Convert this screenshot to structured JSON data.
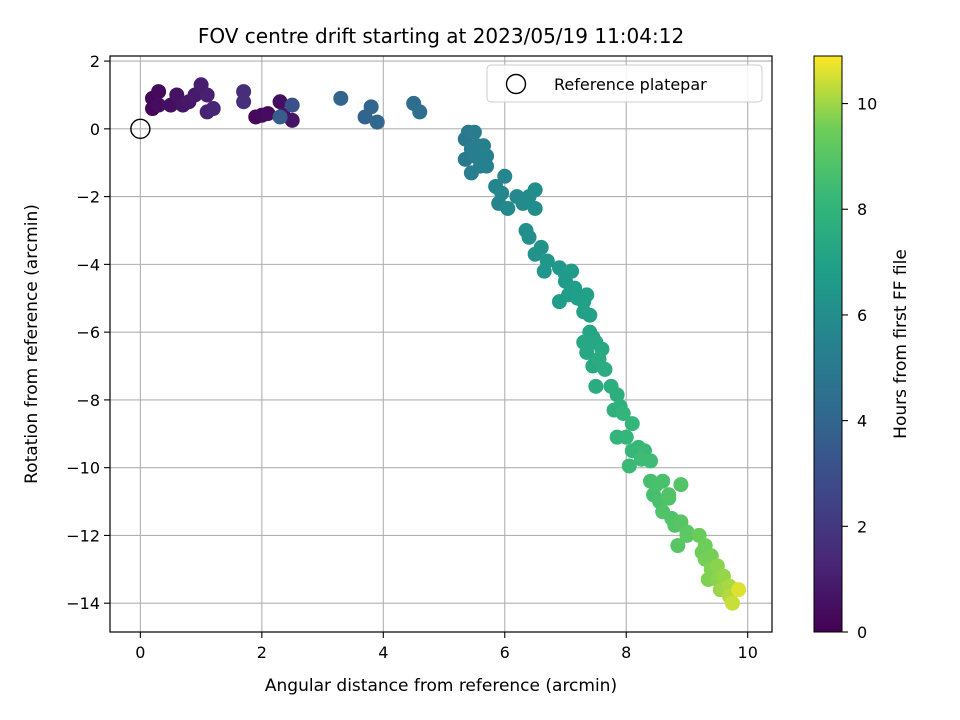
{
  "chart_data": {
    "type": "scatter",
    "title": "FOV centre drift starting at 2023/05/19 11:04:12",
    "xlabel": "Angular distance from reference (arcmin)",
    "ylabel": "Rotation from reference (arcmin)",
    "xlim": [
      -0.5,
      10.4
    ],
    "ylim": [
      -14.85,
      2.15
    ],
    "xticks": [
      0,
      2,
      4,
      6,
      8,
      10
    ],
    "xtick_labels": [
      "0",
      "2",
      "4",
      "6",
      "8",
      "10"
    ],
    "yticks": [
      2,
      0,
      -2,
      -4,
      -6,
      -8,
      -10,
      -12,
      -14
    ],
    "ytick_labels": [
      "2",
      "0",
      "−2",
      "−4",
      "−6",
      "−8",
      "−10",
      "−12",
      "−14"
    ],
    "grid": true,
    "legend": {
      "placement": "top-right",
      "entries": [
        "Reference platepar"
      ]
    },
    "reference_point": {
      "x": 0,
      "y": 0
    },
    "colorbar": {
      "label": "Hours from first FF file",
      "colormap": "viridis",
      "range": [
        0,
        10.9
      ],
      "ticks": [
        0,
        2,
        4,
        6,
        8,
        10
      ],
      "tick_labels": [
        "0",
        "2",
        "4",
        "6",
        "8",
        "10"
      ]
    },
    "points": [
      [
        0.2,
        0.6,
        0.1
      ],
      [
        0.2,
        0.9,
        0.2
      ],
      [
        0.3,
        1.1,
        0.3
      ],
      [
        0.3,
        0.7,
        0.4
      ],
      [
        0.5,
        0.7,
        0.5
      ],
      [
        0.6,
        1.0,
        0.6
      ],
      [
        0.7,
        0.7,
        0.7
      ],
      [
        0.8,
        0.8,
        0.8
      ],
      [
        0.9,
        1.0,
        0.9
      ],
      [
        1.0,
        1.3,
        1.0
      ],
      [
        1.1,
        1.0,
        1.1
      ],
      [
        1.1,
        0.5,
        1.2
      ],
      [
        1.2,
        0.6,
        1.3
      ],
      [
        1.7,
        1.1,
        1.6
      ],
      [
        1.7,
        0.8,
        1.7
      ],
      [
        1.9,
        0.35,
        0.2
      ],
      [
        2.0,
        0.4,
        0.3
      ],
      [
        2.1,
        0.45,
        0.4
      ],
      [
        2.3,
        0.8,
        0.5
      ],
      [
        2.35,
        0.4,
        0.6
      ],
      [
        2.5,
        0.25,
        0.7
      ],
      [
        2.3,
        0.35,
        3.6
      ],
      [
        2.5,
        0.7,
        3.0
      ],
      [
        3.3,
        0.9,
        3.9
      ],
      [
        3.7,
        0.35,
        3.9
      ],
      [
        3.8,
        0.65,
        4.0
      ],
      [
        3.9,
        0.2,
        4.1
      ],
      [
        4.5,
        0.75,
        4.3
      ],
      [
        4.6,
        0.5,
        4.4
      ],
      [
        5.35,
        -0.3,
        4.9
      ],
      [
        5.4,
        -0.1,
        5.0
      ],
      [
        5.35,
        -0.9,
        5.0
      ],
      [
        5.45,
        -0.6,
        5.1
      ],
      [
        5.5,
        -0.1,
        5.1
      ],
      [
        5.5,
        -0.8,
        5.2
      ],
      [
        5.55,
        -0.5,
        5.2
      ],
      [
        5.45,
        -1.3,
        5.2
      ],
      [
        5.6,
        -0.75,
        5.3
      ],
      [
        5.6,
        -1.1,
        5.3
      ],
      [
        5.65,
        -0.5,
        5.3
      ],
      [
        5.7,
        -0.8,
        5.4
      ],
      [
        5.7,
        -1.1,
        5.4
      ],
      [
        5.85,
        -1.7,
        5.6
      ],
      [
        5.9,
        -2.2,
        5.6
      ],
      [
        5.95,
        -1.9,
        5.7
      ],
      [
        6.0,
        -1.4,
        5.7
      ],
      [
        6.05,
        -2.35,
        5.8
      ],
      [
        6.2,
        -2.0,
        5.8
      ],
      [
        6.3,
        -2.2,
        5.9
      ],
      [
        6.4,
        -2.0,
        5.9
      ],
      [
        6.5,
        -2.35,
        6.0
      ],
      [
        6.5,
        -1.8,
        6.0
      ],
      [
        6.35,
        -3.0,
        6.1
      ],
      [
        6.4,
        -3.2,
        6.1
      ],
      [
        6.5,
        -3.7,
        6.3
      ],
      [
        6.6,
        -3.5,
        6.3
      ],
      [
        6.7,
        -3.9,
        6.4
      ],
      [
        6.65,
        -4.2,
        6.4
      ],
      [
        6.9,
        -4.1,
        6.5
      ],
      [
        7.0,
        -4.5,
        6.6
      ],
      [
        7.0,
        -4.3,
        6.6
      ],
      [
        7.1,
        -4.2,
        6.7
      ],
      [
        6.9,
        -5.1,
        6.7
      ],
      [
        7.05,
        -4.9,
        6.8
      ],
      [
        7.15,
        -4.7,
        6.8
      ],
      [
        7.2,
        -5.0,
        6.9
      ],
      [
        7.3,
        -5.1,
        6.9
      ],
      [
        7.35,
        -4.9,
        7.0
      ],
      [
        7.3,
        -5.4,
        7.0
      ],
      [
        7.4,
        -5.5,
        7.0
      ],
      [
        7.4,
        -6.0,
        7.2
      ],
      [
        7.45,
        -6.15,
        7.2
      ],
      [
        7.5,
        -6.3,
        7.3
      ],
      [
        7.3,
        -6.3,
        7.3
      ],
      [
        7.35,
        -6.6,
        7.3
      ],
      [
        7.45,
        -7.0,
        7.4
      ],
      [
        7.55,
        -6.8,
        7.4
      ],
      [
        7.6,
        -6.5,
        7.4
      ],
      [
        7.55,
        -6.8,
        7.5
      ],
      [
        7.5,
        -7.6,
        7.5
      ],
      [
        7.65,
        -7.1,
        7.6
      ],
      [
        7.75,
        -7.6,
        7.7
      ],
      [
        7.85,
        -7.85,
        7.7
      ],
      [
        7.8,
        -8.3,
        7.8
      ],
      [
        7.9,
        -8.2,
        7.8
      ],
      [
        7.95,
        -8.4,
        8.0
      ],
      [
        7.85,
        -9.1,
        8.0
      ],
      [
        8.1,
        -8.7,
        8.1
      ],
      [
        8.0,
        -9.1,
        8.1
      ],
      [
        8.1,
        -9.5,
        8.2
      ],
      [
        8.2,
        -9.4,
        8.2
      ],
      [
        8.3,
        -9.5,
        8.3
      ],
      [
        8.05,
        -9.95,
        8.3
      ],
      [
        8.25,
        -9.75,
        8.4
      ],
      [
        8.4,
        -9.8,
        8.4
      ],
      [
        8.4,
        -10.4,
        8.6
      ],
      [
        8.45,
        -10.8,
        8.6
      ],
      [
        8.5,
        -10.5,
        8.7
      ],
      [
        8.6,
        -10.4,
        8.7
      ],
      [
        8.55,
        -11.0,
        8.7
      ],
      [
        8.7,
        -10.9,
        8.8
      ],
      [
        8.6,
        -11.3,
        8.8
      ],
      [
        8.75,
        -11.5,
        8.8
      ],
      [
        8.7,
        -10.8,
        8.9
      ],
      [
        8.9,
        -10.5,
        8.9
      ],
      [
        8.8,
        -11.7,
        8.9
      ],
      [
        8.9,
        -11.6,
        9.0
      ],
      [
        8.85,
        -12.3,
        9.0
      ],
      [
        9.0,
        -12.0,
        9.1
      ],
      [
        9.0,
        -11.9,
        9.1
      ],
      [
        9.2,
        -12.0,
        9.4
      ],
      [
        9.3,
        -12.3,
        9.5
      ],
      [
        9.25,
        -12.5,
        9.5
      ],
      [
        9.3,
        -12.7,
        9.6
      ],
      [
        9.4,
        -12.6,
        9.6
      ],
      [
        9.4,
        -13.0,
        9.7
      ],
      [
        9.35,
        -13.3,
        9.7
      ],
      [
        9.5,
        -12.9,
        9.8
      ],
      [
        9.5,
        -13.3,
        9.8
      ],
      [
        9.6,
        -13.2,
        9.9
      ],
      [
        9.55,
        -13.6,
        9.9
      ],
      [
        9.6,
        -13.6,
        10.0
      ],
      [
        9.7,
        -13.5,
        10.1
      ],
      [
        9.7,
        -13.8,
        10.2
      ],
      [
        9.75,
        -14.0,
        10.4
      ],
      [
        9.85,
        -13.6,
        10.6
      ]
    ]
  }
}
